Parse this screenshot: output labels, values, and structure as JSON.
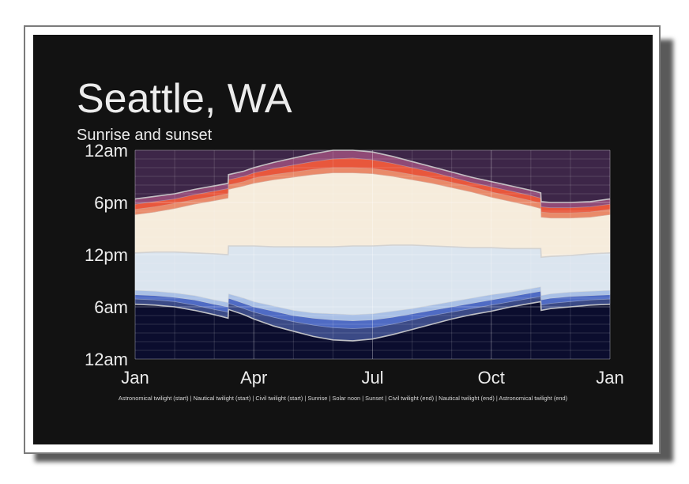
{
  "chart_data": {
    "type": "area",
    "title": "Seattle, WA",
    "subtitle": "Sunrise and sunset",
    "y_ticks": [
      "12am",
      "6pm",
      "12pm",
      "6am",
      "12am"
    ],
    "y_tick_hours": [
      24,
      18,
      12,
      6,
      0
    ],
    "ylim": [
      0,
      24
    ],
    "x_ticks": [
      "Jan",
      "Apr",
      "Jul",
      "Oct",
      "Jan"
    ],
    "x_tick_months": [
      0,
      3,
      6,
      9,
      12
    ],
    "xlim": [
      0,
      12
    ],
    "grid": true,
    "legend_text": "Astronomical twilight (start) | Nautical twilight (start) | Civil twilight (start) | Sunrise | Solar noon | Sunset | Civil twilight (end) | Nautical twilight (end) | Astronomical twilight (end)",
    "x": [
      0,
      0.5,
      1,
      1.5,
      2,
      2.35,
      2.36,
      2.75,
      3,
      3.5,
      4,
      4.5,
      5,
      5.5,
      6,
      6.5,
      7,
      7.5,
      8,
      8.5,
      9,
      9.5,
      10,
      10.25,
      10.26,
      10.5,
      11,
      11.5,
      12
    ],
    "series": [
      {
        "name": "Astronomical twilight (start)",
        "values": [
          6.3,
          6.2,
          6.0,
          5.6,
          5.1,
          4.7,
          5.7,
          5.1,
          4.6,
          3.8,
          3.2,
          2.6,
          2.2,
          2.1,
          2.3,
          2.8,
          3.4,
          4.0,
          4.6,
          5.1,
          5.5,
          6.0,
          6.4,
          6.6,
          5.6,
          5.8,
          6.0,
          6.2,
          6.3
        ]
      },
      {
        "name": "Nautical twilight (start)",
        "values": [
          6.9,
          6.8,
          6.6,
          6.2,
          5.7,
          5.4,
          6.4,
          5.8,
          5.4,
          4.8,
          4.3,
          3.9,
          3.6,
          3.5,
          3.6,
          4.0,
          4.5,
          5.0,
          5.4,
          5.8,
          6.2,
          6.6,
          7.0,
          7.2,
          6.2,
          6.4,
          6.6,
          6.8,
          6.9
        ]
      },
      {
        "name": "Civil twilight (start)",
        "values": [
          7.4,
          7.3,
          7.1,
          6.8,
          6.3,
          6.0,
          7.0,
          6.4,
          6.0,
          5.5,
          5.0,
          4.7,
          4.5,
          4.4,
          4.5,
          4.8,
          5.2,
          5.6,
          6.0,
          6.4,
          6.8,
          7.2,
          7.6,
          7.8,
          6.8,
          7.0,
          7.2,
          7.3,
          7.4
        ]
      },
      {
        "name": "Sunrise",
        "values": [
          7.9,
          7.8,
          7.6,
          7.3,
          6.8,
          6.5,
          7.5,
          7.0,
          6.6,
          6.1,
          5.6,
          5.3,
          5.2,
          5.1,
          5.2,
          5.5,
          5.8,
          6.2,
          6.6,
          7.0,
          7.4,
          7.7,
          8.1,
          8.3,
          7.3,
          7.5,
          7.7,
          7.8,
          7.9
        ]
      },
      {
        "name": "Solar noon",
        "values": [
          12.2,
          12.3,
          12.3,
          12.2,
          12.1,
          12.0,
          13.0,
          13.0,
          13.0,
          12.9,
          12.9,
          12.9,
          12.9,
          13.0,
          13.0,
          13.1,
          13.1,
          13.0,
          12.9,
          12.8,
          12.8,
          12.7,
          12.7,
          12.7,
          11.7,
          11.8,
          11.9,
          12.1,
          12.2
        ]
      },
      {
        "name": "Sunset",
        "values": [
          16.6,
          16.9,
          17.3,
          17.8,
          18.2,
          18.5,
          19.5,
          19.9,
          20.2,
          20.6,
          20.9,
          21.2,
          21.4,
          21.4,
          21.3,
          21.0,
          20.6,
          20.2,
          19.7,
          19.2,
          18.6,
          18.1,
          17.6,
          17.3,
          16.3,
          16.2,
          16.2,
          16.3,
          16.6
        ]
      },
      {
        "name": "Civil twilight (end)",
        "values": [
          17.2,
          17.5,
          17.9,
          18.3,
          18.7,
          19.0,
          20.0,
          20.4,
          20.8,
          21.2,
          21.5,
          21.8,
          22.0,
          22.0,
          21.9,
          21.6,
          21.2,
          20.8,
          20.3,
          19.8,
          19.2,
          18.7,
          18.2,
          17.9,
          16.9,
          16.8,
          16.8,
          16.9,
          17.2
        ]
      },
      {
        "name": "Nautical twilight (end)",
        "values": [
          17.8,
          18.1,
          18.4,
          18.9,
          19.3,
          19.6,
          20.6,
          21.0,
          21.4,
          21.9,
          22.3,
          22.7,
          23.0,
          23.1,
          22.9,
          22.5,
          22.0,
          21.5,
          20.9,
          20.3,
          19.8,
          19.3,
          18.8,
          18.5,
          17.5,
          17.4,
          17.4,
          17.5,
          17.8
        ]
      },
      {
        "name": "Astronomical twilight (end)",
        "values": [
          18.4,
          18.7,
          19.0,
          19.5,
          19.9,
          20.2,
          21.2,
          21.6,
          22.0,
          22.6,
          23.1,
          23.6,
          24.0,
          24.0,
          23.8,
          23.3,
          22.7,
          22.1,
          21.5,
          20.9,
          20.4,
          19.9,
          19.4,
          19.1,
          18.1,
          18.0,
          18.0,
          18.1,
          18.4
        ]
      }
    ],
    "colors": {
      "poster_bg": "#121212",
      "night_morning": "#0b0d2e",
      "astro_morning": "#3b4a86",
      "nautical_morning": "#4f6bc4",
      "civil_morning": "#a9c0e6",
      "day_morning": "#dbe5ef",
      "day_afternoon": "#f6ecdc",
      "civil_evening": "#e98a6a",
      "nautical_evening": "#e8573c",
      "astro_evening": "#8f4a76",
      "night_evening": "#3d2648",
      "boundary_line": "#cfcfcf",
      "grid": "#ffffff"
    }
  }
}
